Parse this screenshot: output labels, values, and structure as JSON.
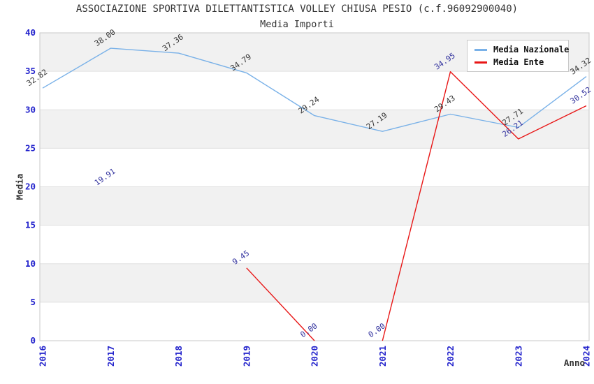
{
  "title": "ASSOCIAZIONE SPORTIVA DILETTANTISTICA VOLLEY CHIUSA PESIO (c.f.96092900040)",
  "subtitle": "Media Importi",
  "axes": {
    "ylabel": "Media",
    "xlabel": "Anno",
    "tick_color": "#2222cc",
    "title_color": "#333333"
  },
  "legend": {
    "position": "top-right",
    "items": [
      {
        "label": "Media Nazionale",
        "color": "#79b1e8"
      },
      {
        "label": "Media Ente",
        "color": "#e81616"
      }
    ]
  },
  "chart_data": {
    "type": "line",
    "x": [
      "2016",
      "2017",
      "2018",
      "2019",
      "2020",
      "2021",
      "2022",
      "2023",
      "2024"
    ],
    "ylim": [
      0,
      40
    ],
    "ytick_step": 5,
    "grid": "alternating-horizontal-bands",
    "band_fill": "#f1f1f1",
    "grid_line_color": "#e0e0e0",
    "plot_border_color": "#c8c8c8",
    "series": [
      {
        "name": "Media Nazionale",
        "color": "#79b1e8",
        "label_color": "#333333",
        "values": [
          32.82,
          38.0,
          37.36,
          34.79,
          29.24,
          27.19,
          29.43,
          27.71,
          34.32
        ],
        "line_segments": [
          [
            0,
            8
          ]
        ]
      },
      {
        "name": "Media Ente",
        "color": "#e81616",
        "label_color": "#30309d",
        "values": [
          null,
          19.91,
          null,
          9.45,
          0.0,
          0.0,
          34.95,
          26.21,
          30.52
        ],
        "line_segments": [
          [
            3,
            4
          ],
          [
            5,
            8
          ]
        ]
      }
    ]
  }
}
